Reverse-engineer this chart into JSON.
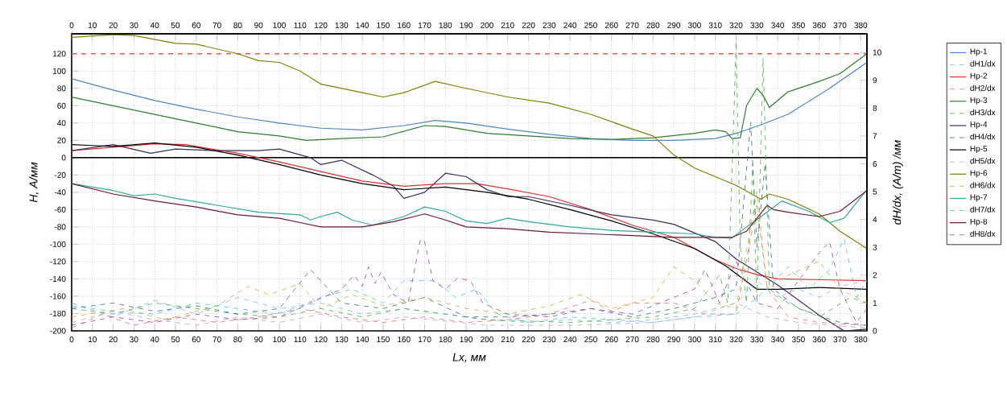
{
  "chart_data": {
    "type": "line",
    "xlabel": "Lx,  мм",
    "ylabel": "H,  A/мм",
    "y2label": "dH/dx,  (A/m) /мм",
    "xlim": [
      0,
      383
    ],
    "ylim": [
      -200,
      143
    ],
    "y2lim": [
      0,
      10.67
    ],
    "x2lim": [
      0,
      383
    ],
    "xticks": [
      0,
      10,
      20,
      30,
      40,
      50,
      60,
      70,
      80,
      90,
      100,
      110,
      120,
      130,
      140,
      150,
      160,
      170,
      180,
      190,
      200,
      210,
      220,
      230,
      240,
      250,
      260,
      270,
      280,
      290,
      300,
      310,
      320,
      330,
      340,
      350,
      360,
      370,
      380
    ],
    "x2ticks": [
      0,
      10,
      20,
      30,
      40,
      50,
      60,
      70,
      80,
      90,
      100,
      110,
      120,
      130,
      140,
      150,
      160,
      170,
      180,
      190,
      200,
      210,
      220,
      230,
      240,
      250,
      260,
      270,
      280,
      290,
      300,
      310,
      320,
      330,
      340,
      350,
      360,
      370,
      380
    ],
    "yticks": [
      -200,
      -180,
      -160,
      -140,
      -120,
      -100,
      -80,
      -60,
      -40,
      -20,
      0,
      20,
      40,
      60,
      80,
      100,
      120
    ],
    "y2ticks": [
      0,
      1,
      2,
      3,
      4,
      5,
      6,
      7,
      8,
      9,
      10
    ],
    "grid": true,
    "legend": "right",
    "line_style": "solid",
    "ref_lines": [
      {
        "axis": "y",
        "value": 120,
        "color": "#e06060",
        "line_style": "dashed"
      },
      {
        "axis": "y",
        "value": 0,
        "color": "#000000",
        "line_style": "solid"
      }
    ],
    "series": [
      {
        "name": "Hp-1",
        "color": "#4a86c8",
        "x": [
          0,
          20,
          40,
          60,
          80,
          100,
          120,
          140,
          160,
          175,
          190,
          210,
          230,
          250,
          270,
          290,
          310,
          320,
          332,
          345,
          365,
          383
        ],
        "values": [
          91,
          78,
          66,
          56,
          47,
          40,
          34,
          32,
          37,
          43,
          40,
          33,
          27,
          22,
          20,
          20,
          22,
          28,
          38,
          50,
          80,
          110
        ]
      },
      {
        "name": "dH1/dx",
        "color": "#7ab8e0",
        "axis": "y2",
        "line_style": "dashed",
        "x": [
          0,
          20,
          40,
          60,
          80,
          100,
          120,
          140,
          160,
          180,
          200,
          220,
          240,
          260,
          280,
          300,
          320,
          330,
          340,
          350,
          360,
          370,
          383
        ],
        "values": [
          1,
          0.5,
          1.1,
          0.6,
          1.2,
          0.8,
          1,
          0.6,
          0.8,
          0.6,
          0.4,
          0.3,
          0.4,
          0.3,
          0.4,
          0.6,
          1,
          1.8,
          1.2,
          1.5,
          1.2,
          1.6,
          1.8
        ]
      },
      {
        "name": "Hp-2",
        "color": "#e03030",
        "x": [
          0,
          20,
          40,
          55,
          80,
          100,
          120,
          140,
          160,
          180,
          195,
          210,
          230,
          250,
          270,
          290,
          300,
          310,
          320,
          330,
          340,
          360,
          383
        ],
        "values": [
          8,
          12,
          16,
          15,
          5,
          -5,
          -16,
          -27,
          -33,
          -30,
          -30,
          -36,
          -45,
          -60,
          -78,
          -92,
          -105,
          -118,
          -128,
          -135,
          -140,
          -141,
          -142
        ]
      },
      {
        "name": "dH2/dx",
        "color": "#e07070",
        "axis": "y2",
        "line_style": "dashed",
        "x": [
          0,
          15,
          30,
          50,
          70,
          90,
          110,
          130,
          150,
          170,
          190,
          210,
          230,
          250,
          260,
          270,
          290,
          305,
          320,
          330,
          335,
          345,
          360,
          383
        ],
        "values": [
          0.1,
          0.6,
          0.2,
          0.5,
          0.3,
          0.5,
          0.8,
          0.5,
          0.3,
          0.5,
          0.3,
          0.4,
          0.6,
          1.1,
          0.7,
          1,
          1,
          0.6,
          0.6,
          4.5,
          1.5,
          0.5,
          0.3,
          0.2
        ]
      },
      {
        "name": "Hp-3",
        "color": "#2e7d32",
        "x": [
          0,
          20,
          40,
          60,
          80,
          100,
          113,
          130,
          150,
          170,
          180,
          200,
          220,
          240,
          260,
          280,
          300,
          310,
          315,
          318,
          322,
          325,
          330,
          333,
          336,
          345,
          360,
          370,
          383
        ],
        "values": [
          70,
          60,
          50,
          40,
          30,
          25,
          20,
          22,
          24,
          37,
          36,
          28,
          25,
          22,
          21,
          23,
          28,
          32,
          30,
          22,
          23,
          60,
          80,
          72,
          58,
          76,
          88,
          97,
          120
        ]
      },
      {
        "name": "dH3/dx",
        "color": "#40b040",
        "axis": "y2",
        "line_style": "dashed",
        "x": [
          0,
          20,
          40,
          60,
          80,
          100,
          120,
          140,
          160,
          200,
          240,
          280,
          300,
          312,
          316,
          319,
          320,
          322,
          325,
          328,
          330,
          333,
          336,
          345,
          360,
          375,
          383
        ],
        "values": [
          0.8,
          0.6,
          1,
          0.8,
          0.6,
          0.5,
          0.8,
          0.5,
          0.8,
          0.4,
          0.3,
          0.5,
          0.8,
          2,
          1,
          8,
          10.4,
          3,
          1,
          6,
          1,
          9.8,
          1.5,
          1,
          0.5,
          1.2,
          1
        ]
      },
      {
        "name": "Hp-4",
        "color": "#3a2f5f",
        "x": [
          0,
          20,
          38,
          50,
          70,
          90,
          100,
          115,
          120,
          130,
          145,
          155,
          160,
          170,
          180,
          190,
          200,
          210,
          220,
          240,
          260,
          280,
          290,
          310,
          320,
          340,
          360,
          372,
          383
        ],
        "values": [
          8,
          15,
          5,
          10,
          8,
          8,
          10,
          0,
          -8,
          -3,
          -20,
          -33,
          -47,
          -40,
          -18,
          -22,
          -37,
          -45,
          -45,
          -55,
          -66,
          -72,
          -77,
          -97,
          -117,
          -147,
          -182,
          -200,
          -198
        ]
      },
      {
        "name": "dH4/dx",
        "color": "#2f6f6f",
        "axis": "y2",
        "line_style": "dashed",
        "x": [
          0,
          20,
          40,
          60,
          80,
          100,
          115,
          130,
          150,
          170,
          190,
          210,
          230,
          250,
          270,
          290,
          310,
          320,
          327,
          330,
          334,
          338,
          350,
          370,
          383
        ],
        "values": [
          0.8,
          1,
          0.7,
          0.9,
          0.6,
          0.8,
          2.2,
          1,
          0.8,
          1.2,
          0.5,
          0.5,
          0.6,
          0.8,
          0.5,
          0.8,
          1.2,
          1.5,
          7.5,
          3,
          6,
          1.5,
          0.8,
          0.3,
          0.2
        ]
      },
      {
        "name": "Hp-5",
        "color": "#000000",
        "x": [
          0,
          10,
          20,
          40,
          60,
          80,
          100,
          120,
          140,
          160,
          180,
          200,
          220,
          240,
          260,
          280,
          300,
          315,
          330,
          340,
          360,
          383
        ],
        "values": [
          15,
          14,
          13,
          17,
          12,
          3,
          -8,
          -20,
          -30,
          -37,
          -34,
          -40,
          -48,
          -60,
          -73,
          -88,
          -105,
          -125,
          -152,
          -152,
          -150,
          -152
        ]
      },
      {
        "name": "dH5/dx",
        "color": "#c0a0d0",
        "axis": "y2",
        "line_style": "dashed",
        "x": [
          0,
          20,
          40,
          60,
          80,
          100,
          120,
          140,
          160,
          200,
          240,
          280,
          300,
          320,
          335,
          350,
          383
        ],
        "values": [
          0.3,
          0.7,
          0.4,
          0.2,
          0.5,
          0.3,
          0.6,
          0.3,
          0.5,
          0.2,
          0.2,
          0.3,
          0.5,
          1,
          0.5,
          0.3,
          0.1
        ]
      },
      {
        "name": "Hp-6",
        "color": "#808000",
        "x": [
          0,
          20,
          30,
          50,
          60,
          80,
          90,
          100,
          110,
          120,
          140,
          150,
          160,
          175,
          190,
          210,
          230,
          250,
          270,
          280,
          290,
          300,
          310,
          320,
          332,
          336,
          345,
          360,
          370,
          383
        ],
        "values": [
          139,
          142,
          141,
          132,
          131,
          120,
          112,
          110,
          100,
          85,
          75,
          70,
          75,
          88,
          80,
          70,
          63,
          50,
          33,
          25,
          3,
          -12,
          -22,
          -32,
          -48,
          -42,
          -48,
          -65,
          -85,
          -105
        ]
      },
      {
        "name": "dH6/dx",
        "color": "#c8b030",
        "axis": "y2",
        "line_style": "dashed",
        "x": [
          0,
          25,
          45,
          70,
          85,
          95,
          110,
          120,
          135,
          150,
          170,
          190,
          210,
          230,
          245,
          260,
          280,
          290,
          300,
          310,
          320,
          330,
          335,
          345,
          360,
          370,
          383
        ],
        "values": [
          0.5,
          0.8,
          0.4,
          0.9,
          1.6,
          1.3,
          1.7,
          0.8,
          1.3,
          0.9,
          1.2,
          0.8,
          0.6,
          0.9,
          1.3,
          0.8,
          1.2,
          2.3,
          1.8,
          1,
          0.8,
          5,
          1.5,
          2,
          2.5,
          1.5,
          1
        ]
      },
      {
        "name": "Hp-7",
        "color": "#30a8a0",
        "x": [
          0,
          20,
          30,
          40,
          50,
          70,
          90,
          110,
          115,
          120,
          128,
          135,
          145,
          160,
          170,
          180,
          190,
          200,
          210,
          220,
          240,
          260,
          280,
          300,
          310,
          318,
          325,
          332,
          342,
          355,
          365,
          372,
          383
        ],
        "values": [
          -30,
          -38,
          -44,
          -42,
          -47,
          -55,
          -63,
          -66,
          -72,
          -68,
          -63,
          -72,
          -78,
          -68,
          -57,
          -62,
          -73,
          -76,
          -70,
          -74,
          -80,
          -84,
          -86,
          -88,
          -92,
          -93,
          -80,
          -68,
          -50,
          -62,
          -75,
          -70,
          -37
        ]
      },
      {
        "name": "dH7/dx",
        "color": "#40c8d0",
        "axis": "y2",
        "line_style": "dashed",
        "x": [
          0,
          20,
          40,
          60,
          80,
          100,
          120,
          135,
          150,
          160,
          175,
          185,
          195,
          205,
          220,
          240,
          260,
          280,
          300,
          320,
          335,
          345,
          355,
          365,
          372,
          378,
          383
        ],
        "values": [
          0.9,
          0.7,
          0.6,
          1,
          0.8,
          0.6,
          1.2,
          1.5,
          1,
          1.8,
          1.8,
          1.2,
          1.5,
          0.6,
          0.3,
          0.5,
          0.4,
          0.3,
          0.5,
          0.6,
          1.5,
          2.3,
          1.5,
          2.2,
          3.3,
          1.2,
          1.8
        ]
      },
      {
        "name": "Hp-8",
        "color": "#6b1a2a",
        "x": [
          0,
          20,
          40,
          60,
          80,
          100,
          110,
          120,
          140,
          155,
          165,
          170,
          180,
          190,
          210,
          230,
          250,
          270,
          290,
          310,
          318,
          325,
          330,
          335,
          338,
          345,
          360,
          370,
          383
        ],
        "values": [
          -30,
          -42,
          -50,
          -57,
          -66,
          -70,
          -75,
          -80,
          -80,
          -74,
          -68,
          -65,
          -72,
          -80,
          -82,
          -86,
          -88,
          -90,
          -92,
          -92,
          -92,
          -85,
          -70,
          -55,
          -60,
          -63,
          -68,
          -62,
          -38
        ]
      },
      {
        "name": "dH8/dx",
        "color": "#9a40a0",
        "axis": "y2",
        "line_style": "dashed",
        "x": [
          0,
          20,
          40,
          60,
          80,
          100,
          115,
          130,
          136,
          140,
          143,
          146,
          149,
          155,
          162,
          168,
          170,
          174,
          180,
          186,
          192,
          198,
          210,
          230,
          250,
          270,
          290,
          300,
          305,
          312,
          320,
          330,
          340,
          350,
          360,
          365,
          370,
          378,
          383
        ],
        "values": [
          0.2,
          0.5,
          0.3,
          0.6,
          0.4,
          0.5,
          1,
          1.5,
          2,
          1.6,
          2.3,
          1.7,
          2.1,
          1.3,
          1,
          3.3,
          3.2,
          1.8,
          1.5,
          1.9,
          1.8,
          1,
          0.6,
          0.5,
          0.8,
          0.6,
          1.2,
          1.5,
          2.2,
          1,
          2.5,
          1,
          0.8,
          1.8,
          2.8,
          3.2,
          1.5,
          0.3,
          0.8
        ]
      }
    ]
  }
}
